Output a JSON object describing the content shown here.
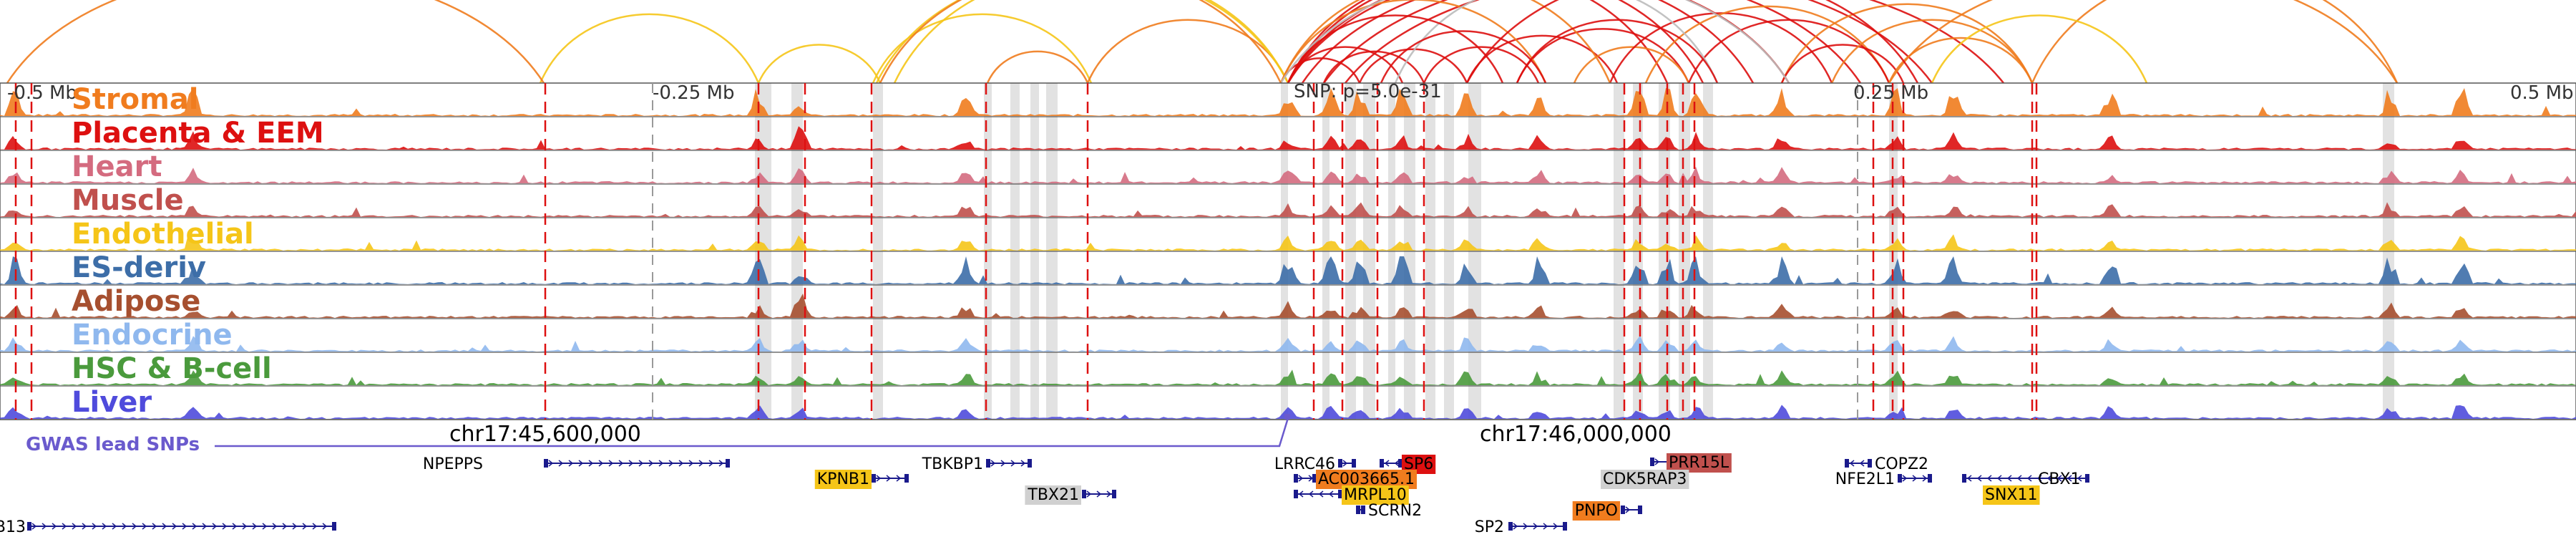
{
  "axis": {
    "ticks": [
      "-0.5 Mb",
      "-0.25 Mb",
      "0.25 Mb",
      "0.5 Mb"
    ],
    "snp_label": "SNP: p=5.0e-31"
  },
  "tracks": [
    {
      "name": "Stromal",
      "color": "#f07c1e"
    },
    {
      "name": "Placenta & EEM",
      "color": "#dd1010"
    },
    {
      "name": "Heart",
      "color": "#d46b7f"
    },
    {
      "name": "Muscle",
      "color": "#c0504d"
    },
    {
      "name": "Endothelial",
      "color": "#f5c518"
    },
    {
      "name": "ES-deriv",
      "color": "#3d6ea8"
    },
    {
      "name": "Adipose",
      "color": "#a64f2f"
    },
    {
      "name": "Endocrine",
      "color": "#8fb8ee"
    },
    {
      "name": "HSC & B-cell",
      "color": "#4a9a3c"
    },
    {
      "name": "Liver",
      "color": "#4f4bdc"
    }
  ],
  "gwas": {
    "label": "GWAS lead SNPs",
    "color": "#6a5acd"
  },
  "coordinates": [
    "chr17:45,600,000",
    "chr17:46,000,000"
  ],
  "genes": [
    {
      "name": "NPEPPS",
      "highlight": "none"
    },
    {
      "name": "KPNB1",
      "highlight": "yellow"
    },
    {
      "name": "TBKBP1",
      "highlight": "none"
    },
    {
      "name": "TBX21",
      "highlight": "gray"
    },
    {
      "name": "LRRC46",
      "highlight": "none"
    },
    {
      "name": "SP6",
      "highlight": "red"
    },
    {
      "name": "AC003665.1",
      "highlight": "orange"
    },
    {
      "name": "MRPL10",
      "highlight": "yellow"
    },
    {
      "name": "SCRN2",
      "highlight": "none"
    },
    {
      "name": "SP2",
      "highlight": "none"
    },
    {
      "name": "PNPO",
      "highlight": "orange"
    },
    {
      "name": "PRR15L",
      "highlight": "brown"
    },
    {
      "name": "CDK5RAP3",
      "highlight": "gray"
    },
    {
      "name": "COPZ2",
      "highlight": "none"
    },
    {
      "name": "NFE2L1",
      "highlight": "none"
    },
    {
      "name": "CBX1",
      "highlight": "none"
    },
    {
      "name": "SNX11",
      "highlight": "yellow"
    },
    {
      "name": "B13",
      "highlight": "none"
    }
  ],
  "highlight_colors": {
    "yellow": "#f5c518",
    "gray": "#d0d0d0",
    "red": "#dd1010",
    "orange": "#f07c1e",
    "brown": "#c0504d"
  },
  "arc_colors": [
    "#dd1010",
    "#f07c1e",
    "#f5c518",
    "#bbbbbb"
  ]
}
